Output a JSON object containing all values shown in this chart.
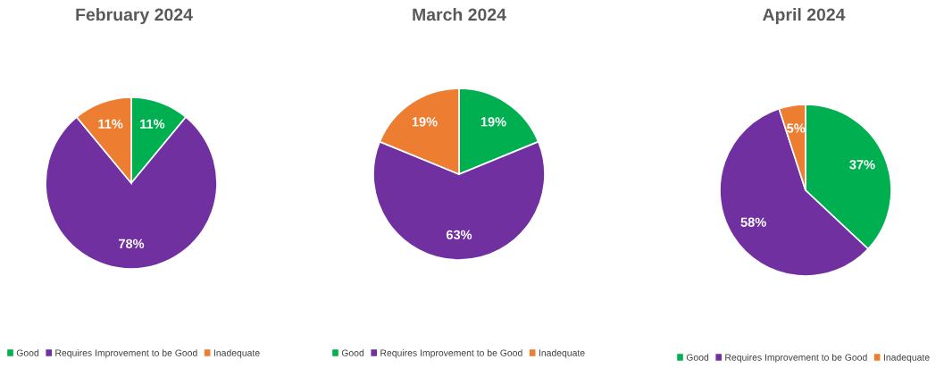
{
  "chart_data": [
    {
      "type": "pie",
      "title": "February 2024",
      "categories": [
        "Good",
        "Requires Improvement to be Good",
        "Inadequate"
      ],
      "values": [
        11,
        78,
        11
      ],
      "colors": [
        "#00b050",
        "#7030a0",
        "#ed7d31"
      ],
      "value_labels": [
        "11%",
        "78%",
        "11%"
      ],
      "legend": "bottom"
    },
    {
      "type": "pie",
      "title": "March 2024",
      "categories": [
        "Good",
        "Requires Improvement to be Good",
        "Inadequate"
      ],
      "values": [
        19,
        63,
        19
      ],
      "colors": [
        "#00b050",
        "#7030a0",
        "#ed7d31"
      ],
      "value_labels": [
        "19%",
        "63%",
        "19%"
      ],
      "legend": "bottom"
    },
    {
      "type": "pie",
      "title": "April 2024",
      "categories": [
        "Good",
        "Requires Improvement to be Good",
        "Inadequate"
      ],
      "values": [
        37,
        58,
        5
      ],
      "colors": [
        "#00b050",
        "#7030a0",
        "#ed7d31"
      ],
      "value_labels": [
        "37%",
        "58%",
        "5%"
      ],
      "legend": "bottom"
    }
  ]
}
